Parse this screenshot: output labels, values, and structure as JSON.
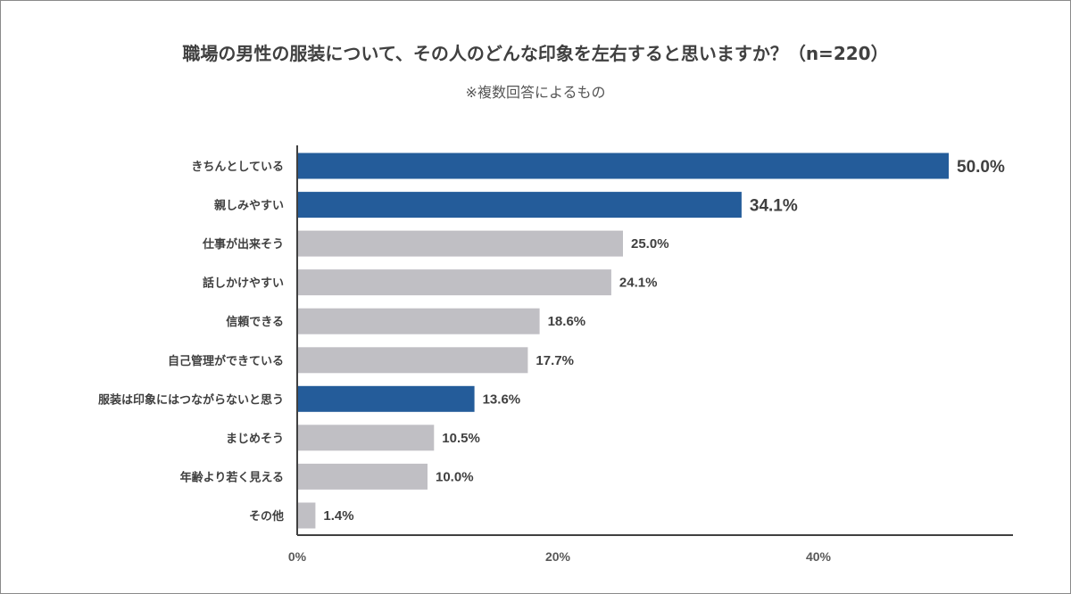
{
  "chart_data": {
    "type": "bar",
    "orientation": "horizontal",
    "title": "職場の男性の服装について、その人のどんな印象を左右すると思いますか？（n=220）",
    "subtitle": "※複数回答によるもの",
    "categories": [
      "きちんとしている",
      "親しみやすい",
      "仕事が出来そう",
      "話しかけやすい",
      "信頼できる",
      "自己管理ができている",
      "服装は印象にはつながらないと思う",
      "まじめそう",
      "年齢より若く見える",
      "その他"
    ],
    "values": [
      50.0,
      34.1,
      25.0,
      24.1,
      18.6,
      17.7,
      13.6,
      10.5,
      10.0,
      1.4
    ],
    "value_labels": [
      "50.0%",
      "34.1%",
      "25.0%",
      "24.1%",
      "18.6%",
      "17.7%",
      "13.6%",
      "10.5%",
      "10.0%",
      "1.4%"
    ],
    "highlighted": [
      true,
      true,
      false,
      false,
      false,
      false,
      true,
      false,
      false,
      false
    ],
    "x_ticks": [
      0,
      20,
      40
    ],
    "x_tick_labels": [
      "0%",
      "20%",
      "40%"
    ],
    "xlim": [
      0,
      55
    ],
    "grid": false,
    "colors": {
      "highlight": "#245c9a",
      "normal": "#c0bfc4",
      "axis": "#404040",
      "text": "#404040"
    }
  }
}
